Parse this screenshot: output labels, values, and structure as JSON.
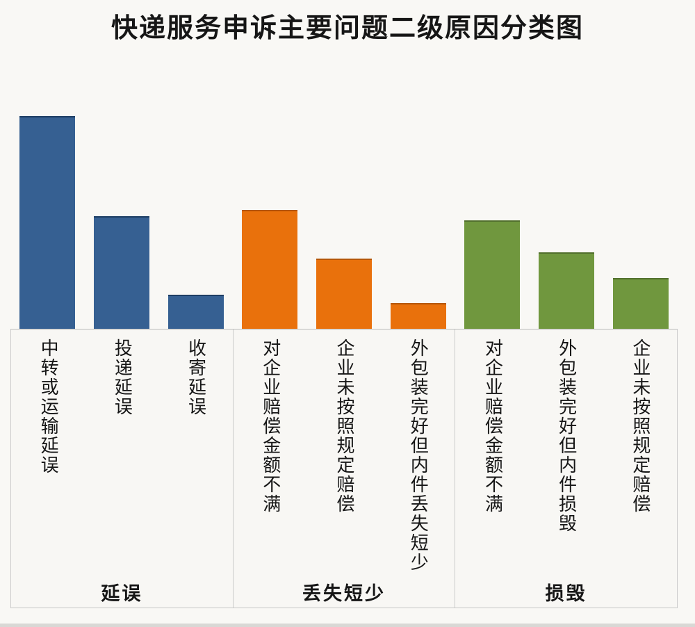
{
  "chart_data": {
    "type": "bar",
    "title": "快递服务申诉主要问题二级原因分类图",
    "xlabel": "",
    "ylabel": "",
    "legend": false,
    "grid": false,
    "value_axis": "unlabeled (no numeric ticks shown); values are relative estimates from bar heights, tallest bar = 100",
    "ylim": [
      0,
      100
    ],
    "groups": [
      {
        "label": "延误",
        "color": "#366092",
        "border_color": "#1d3d63",
        "categories": [
          "中转或运输延误",
          "投递延误",
          "收寄延误"
        ],
        "values": [
          100,
          53,
          16
        ]
      },
      {
        "label": "丢失短少",
        "color": "#e9710c",
        "border_color": "#b55608",
        "categories": [
          "对企业赔偿金额不满",
          "企业未按照规定赔偿",
          "外包装完好但内件丢失短少"
        ],
        "values": [
          56,
          33,
          12
        ]
      },
      {
        "label": "损毁",
        "color": "#70973e",
        "border_color": "#52702d",
        "categories": [
          "对企业赔偿金额不满",
          "外包装完好但内件损毁",
          "企业未按照规定赔偿"
        ],
        "values": [
          51,
          36,
          24
        ]
      }
    ]
  },
  "colors": {
    "background": "#f9f8f5",
    "axis_baseline": "#b9b9b9",
    "axis_box_line": "#cbcbcb",
    "bottom_edge_strip": "#d9d8d5",
    "text": "#161616"
  }
}
